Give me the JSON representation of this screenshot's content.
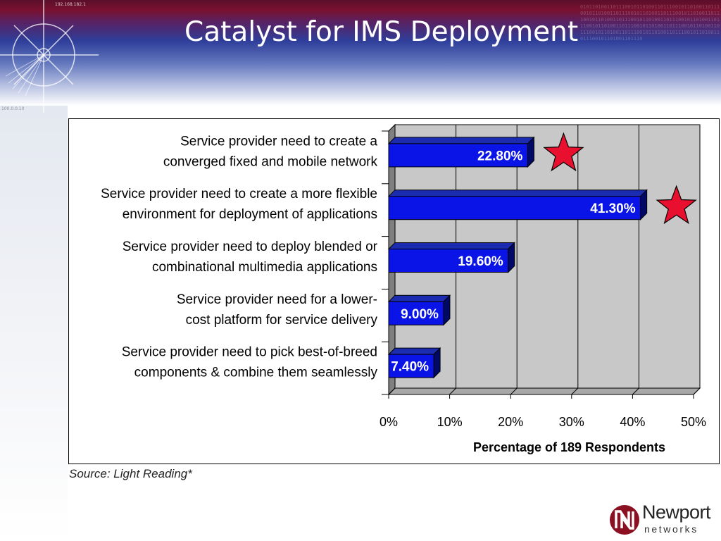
{
  "slide": {
    "title": "Catalyst for IMS Deployment",
    "source": "Source: Light Reading*",
    "header_ip_top": "192.168.182.1",
    "header_ip_side": "100.0.0.10",
    "logo": {
      "word1": "Newport",
      "word2": "networks"
    }
  },
  "colors": {
    "bar_face": "#0a14e6",
    "bar_top": "#1c2cb0",
    "bar_side": "#000a66",
    "plot_bg": "#c8c8c8",
    "star_fill": "#e8102e",
    "logo_red": "#8b1022"
  },
  "chart_data": {
    "type": "bar",
    "orientation": "horizontal",
    "categories": [
      [
        "Service provider need to create a",
        "converged fixed and mobile network"
      ],
      [
        "Service provider need to create a more flexible",
        "environment for deployment of applications"
      ],
      [
        "Service provider need to deploy blended or",
        "combinational multimedia applications"
      ],
      [
        "Service provider need for a lower-",
        "cost platform for service delivery"
      ],
      [
        "Service provider need to pick best-of-breed",
        "components & combine them seamlessly"
      ]
    ],
    "values": [
      22.8,
      41.3,
      19.6,
      9.0,
      7.4
    ],
    "value_labels": [
      "22.80%",
      "41.30%",
      "19.60%",
      "9.00%",
      "7.40%"
    ],
    "highlighted": [
      true,
      true,
      false,
      false,
      false
    ],
    "xlim": [
      0,
      50
    ],
    "xticks": [
      0,
      10,
      20,
      30,
      40,
      50
    ],
    "xtick_labels": [
      "0%",
      "10%",
      "20%",
      "30%",
      "40%",
      "50%"
    ],
    "xlabel": "Percentage of 189 Respondents",
    "grid": true,
    "style": "3d"
  }
}
